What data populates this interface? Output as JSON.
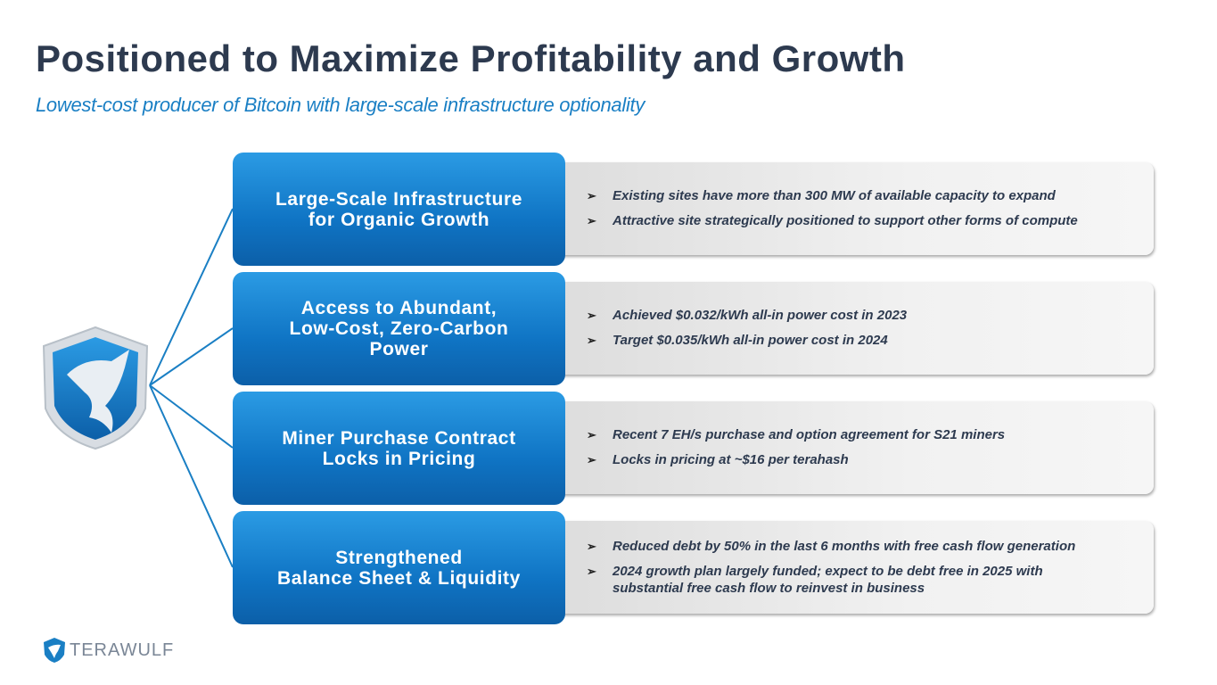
{
  "header": {
    "title": "Positioned to Maximize Profitability and Growth",
    "subtitle": "Lowest-cost producer of Bitcoin with large-scale infrastructure optionality"
  },
  "items": [
    {
      "lines": [
        "Large-Scale Infrastructure",
        "for Organic Growth"
      ],
      "bullets": [
        "Existing sites have more than 300 MW of available capacity to expand",
        "Attractive site strategically positioned to support other forms of compute"
      ]
    },
    {
      "lines": [
        "Access to Abundant,",
        "Low-Cost, Zero-Carbon",
        "Power"
      ],
      "bullets": [
        "Achieved $0.032/kWh all-in power cost in 2023",
        "Target $0.035/kWh all-in power cost in 2024"
      ]
    },
    {
      "lines": [
        "Miner Purchase Contract",
        "Locks in Pricing"
      ],
      "bullets": [
        "Recent 7 EH/s purchase and option agreement for S21 miners",
        "Locks in pricing at ~$16 per terahash"
      ]
    },
    {
      "lines": [
        "Strengthened",
        "Balance Sheet & Liquidity"
      ],
      "bullets": [
        "Reduced debt by 50% in the last 6 months with free cash flow generation",
        "2024 growth plan largely funded; expect to be debt free in 2025 with substantial free cash flow to reinvest in business"
      ]
    }
  ],
  "logo": {
    "text": "TERAWULF"
  }
}
